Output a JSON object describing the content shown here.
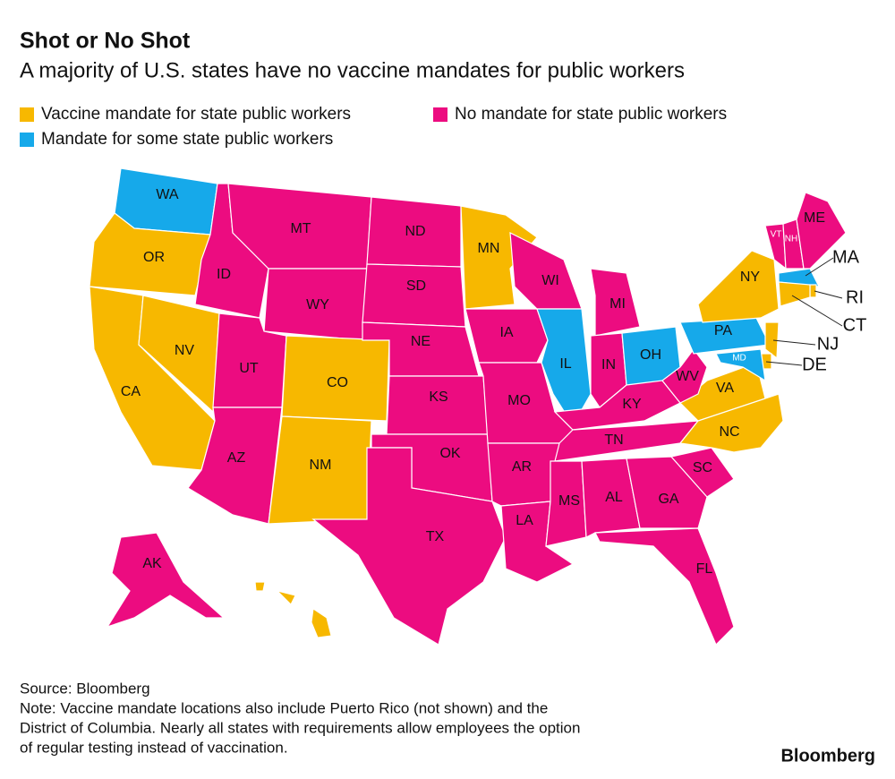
{
  "header": {
    "title": "Shot or No Shot",
    "subtitle": "A majority of U.S. states have no vaccine mandates for public workers"
  },
  "legend": [
    {
      "label": "Vaccine mandate for state public workers",
      "color": "#f7b800"
    },
    {
      "label": "No mandate for state public workers",
      "color": "#ec0c80"
    },
    {
      "label": "Mandate for some state public workers",
      "color": "#16a9ea"
    }
  ],
  "states": [
    {
      "label": "WA",
      "category": 2
    },
    {
      "label": "OR",
      "category": 0
    },
    {
      "label": "CA",
      "category": 0
    },
    {
      "label": "NV",
      "category": 0
    },
    {
      "label": "ID",
      "category": 1
    },
    {
      "label": "MT",
      "category": 1
    },
    {
      "label": "WY",
      "category": 1
    },
    {
      "label": "UT",
      "category": 1
    },
    {
      "label": "AZ",
      "category": 1
    },
    {
      "label": "CO",
      "category": 0
    },
    {
      "label": "NM",
      "category": 0
    },
    {
      "label": "ND",
      "category": 1
    },
    {
      "label": "SD",
      "category": 1
    },
    {
      "label": "NE",
      "category": 1
    },
    {
      "label": "KS",
      "category": 1
    },
    {
      "label": "OK",
      "category": 1
    },
    {
      "label": "TX",
      "category": 1
    },
    {
      "label": "MN",
      "category": 0
    },
    {
      "label": "IA",
      "category": 1
    },
    {
      "label": "MO",
      "category": 1
    },
    {
      "label": "AR",
      "category": 1
    },
    {
      "label": "LA",
      "category": 1
    },
    {
      "label": "WI",
      "category": 1
    },
    {
      "label": "IL",
      "category": 2
    },
    {
      "label": "MI",
      "category": 1
    },
    {
      "label": "IN",
      "category": 1
    },
    {
      "label": "OH",
      "category": 2
    },
    {
      "label": "KY",
      "category": 1
    },
    {
      "label": "TN",
      "category": 1
    },
    {
      "label": "MS",
      "category": 1
    },
    {
      "label": "AL",
      "category": 1
    },
    {
      "label": "GA",
      "category": 1
    },
    {
      "label": "FL",
      "category": 1
    },
    {
      "label": "SC",
      "category": 1
    },
    {
      "label": "NC",
      "category": 0
    },
    {
      "label": "VA",
      "category": 0
    },
    {
      "label": "WV",
      "category": 1
    },
    {
      "label": "PA",
      "category": 2
    },
    {
      "label": "NY",
      "category": 0
    },
    {
      "label": "VT",
      "category": 1
    },
    {
      "label": "NH",
      "category": 1
    },
    {
      "label": "ME",
      "category": 1
    },
    {
      "label": "MA",
      "category": 2
    },
    {
      "label": "RI",
      "category": 0
    },
    {
      "label": "CT",
      "category": 0
    },
    {
      "label": "NJ",
      "category": 0
    },
    {
      "label": "DE",
      "category": 0
    },
    {
      "label": "MD",
      "category": 2
    },
    {
      "label": "AK",
      "category": 1
    },
    {
      "label": null,
      "category": 0
    }
  ],
  "footer": {
    "source": "Source: Bloomberg",
    "note": [
      "Note: Vaccine mandate locations also include Puerto Rico (not shown) and the",
      "District of Columbia. Nearly all states with requirements allow employees the option",
      "of regular testing instead of vaccination."
    ],
    "brand": "Bloomberg"
  }
}
